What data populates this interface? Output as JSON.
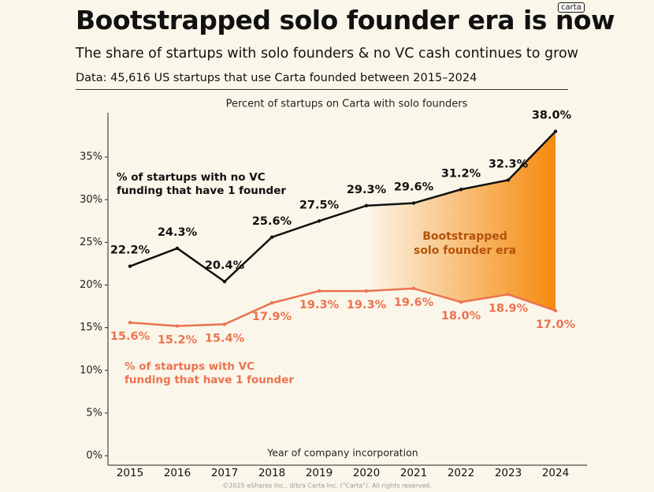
{
  "chart_data": {
    "type": "line",
    "title": "Bootstrapped solo founder era is now",
    "subtitle": "The share of startups with solo founders & no VC cash continues to grow",
    "note": "Data: 45,616 US startups that use Carta founded between 2015–2024",
    "logo": "carta",
    "y_label": "Percent of startups on Carta with solo founders",
    "x_label": "Year of company incorporation",
    "annotation": "Bootstrapped solo founder era",
    "footer": "©2025 eShares Inc., d/b/a Carta Inc. (\"Carta\"). All rights reserved.",
    "categories": [
      "2015",
      "2016",
      "2017",
      "2018",
      "2019",
      "2020",
      "2021",
      "2022",
      "2023",
      "2024"
    ],
    "series": [
      {
        "name": "% of startups with no VC funding that have 1 founder",
        "color": "#111111",
        "values": [
          22.2,
          24.3,
          20.4,
          25.6,
          27.5,
          29.3,
          29.6,
          31.2,
          32.3,
          38.0
        ],
        "value_labels": [
          "22.2%",
          "24.3%",
          "20.4%",
          "25.6%",
          "27.5%",
          "29.3%",
          "29.6%",
          "31.2%",
          "32.3%",
          "38.0%"
        ]
      },
      {
        "name": "% of startups with VC funding that have 1 founder",
        "color": "#ea7350",
        "values": [
          15.6,
          15.2,
          15.4,
          17.9,
          19.3,
          19.3,
          19.6,
          18.0,
          18.9,
          17.0
        ],
        "value_labels": [
          "15.6%",
          "15.2%",
          "15.4%",
          "17.9%",
          "19.3%",
          "19.3%",
          "19.6%",
          "18.0%",
          "18.9%",
          "17.0%"
        ]
      }
    ],
    "ylim": [
      0,
      40
    ],
    "yticks": [
      {
        "value": 0,
        "label": "0%"
      },
      {
        "value": 5,
        "label": "5%"
      },
      {
        "value": 10,
        "label": "10%"
      },
      {
        "value": 15,
        "label": "15%"
      },
      {
        "value": 20,
        "label": "20%"
      },
      {
        "value": 25,
        "label": "25%"
      },
      {
        "value": 30,
        "label": "30%"
      },
      {
        "value": 35,
        "label": "35%"
      }
    ],
    "band_color": "#f58a0c"
  }
}
